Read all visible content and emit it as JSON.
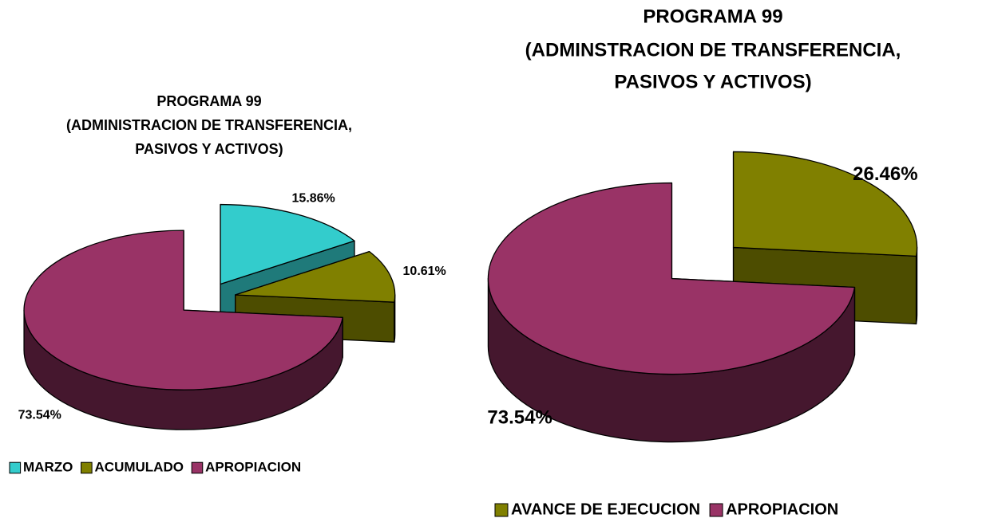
{
  "chart_data": [
    {
      "type": "pie3d",
      "title": [
        "PROGRAMA 99",
        "(ADMINISTRACION DE TRANSFERENCIA,",
        "PASIVOS Y ACTIVOS)"
      ],
      "categories": [
        "MARZO",
        "ACUMULADO",
        "APROPIACION"
      ],
      "values": [
        15.86,
        10.61,
        73.54
      ],
      "value_labels": [
        "15.86%",
        "10.61%",
        "73.54%"
      ],
      "colors": [
        "#33cccc",
        "#808000",
        "#993366"
      ],
      "legend": "bottom"
    },
    {
      "type": "pie3d",
      "title": [
        "PROGRAMA 99",
        "(ADMINSTRACION DE TRANSFERENCIA,",
        "PASIVOS Y ACTIVOS)"
      ],
      "categories": [
        "AVANCE DE EJECUCION",
        "APROPIACION"
      ],
      "values": [
        26.46,
        73.54
      ],
      "value_labels": [
        "26.46%",
        "73.54%"
      ],
      "colors": [
        "#808000",
        "#993366"
      ],
      "legend": "bottom"
    }
  ]
}
